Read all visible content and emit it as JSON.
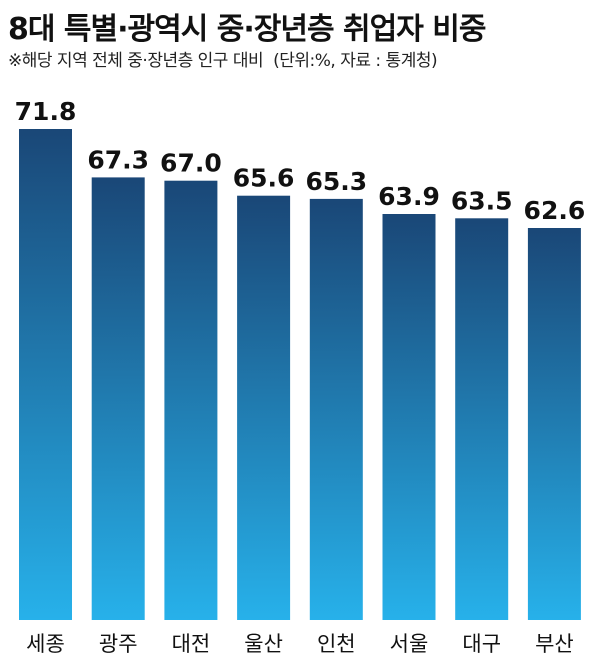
{
  "title": "8대 특별·광역시 중·장년층 취업자 비중",
  "subtitle": "※해당 지역 전체 중·장년층 인구 대비",
  "source": "(단위:%, 자료 : 통계청)",
  "colors": {
    "bar_top": "#1a4777",
    "bar_bottom": "#27b1ea"
  },
  "chart_data": {
    "type": "bar",
    "title": "8대 특별·광역시 중·장년층 취업자 비중",
    "xlabel": "",
    "ylabel": "",
    "unit": "%",
    "categories": [
      "세종",
      "광주",
      "대전",
      "울산",
      "인천",
      "서울",
      "대구",
      "부산"
    ],
    "values": [
      71.8,
      67.3,
      67.0,
      65.6,
      65.3,
      63.9,
      63.5,
      62.6
    ],
    "value_labels": [
      "71.8",
      "67.3",
      "67.0",
      "65.6",
      "65.3",
      "63.9",
      "63.5",
      "62.6"
    ],
    "grid": false,
    "legend": "none"
  }
}
